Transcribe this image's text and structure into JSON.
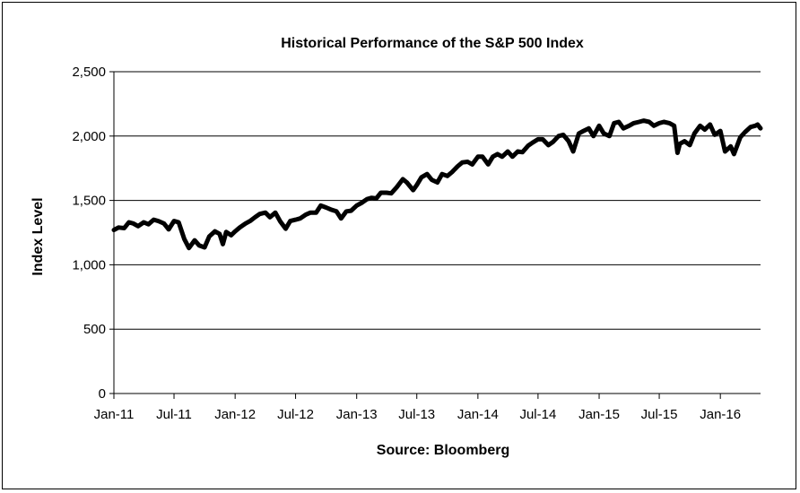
{
  "chart_data": {
    "type": "line",
    "title": "Historical Performance of the S&P 500 Index",
    "xlabel": "Source: Bloomberg",
    "ylabel": "Index Level",
    "ylim": [
      0,
      2500
    ],
    "yticks": [
      0,
      500,
      1000,
      1500,
      2000,
      2500
    ],
    "ytick_labels": [
      "0",
      "500",
      "1,000",
      "1,500",
      "2,000",
      "2,500"
    ],
    "xlim": [
      "2011-01-01",
      "2016-05-01"
    ],
    "xtick_labels": [
      "Jan-11",
      "Jul-11",
      "Jan-12",
      "Jul-12",
      "Jan-13",
      "Jul-13",
      "Jan-14",
      "Jul-14",
      "Jan-15",
      "Jul-15",
      "Jan-16"
    ],
    "grid": "horizontal",
    "series": [
      {
        "color": "#000000",
        "points": [
          [
            "2011-01-01",
            1270
          ],
          [
            "2011-01-15",
            1290
          ],
          [
            "2011-02-01",
            1285
          ],
          [
            "2011-02-15",
            1330
          ],
          [
            "2011-03-01",
            1320
          ],
          [
            "2011-03-15",
            1300
          ],
          [
            "2011-04-01",
            1330
          ],
          [
            "2011-04-15",
            1315
          ],
          [
            "2011-05-01",
            1350
          ],
          [
            "2011-05-15",
            1340
          ],
          [
            "2011-06-01",
            1320
          ],
          [
            "2011-06-15",
            1275
          ],
          [
            "2011-07-01",
            1340
          ],
          [
            "2011-07-15",
            1330
          ],
          [
            "2011-08-01",
            1200
          ],
          [
            "2011-08-15",
            1130
          ],
          [
            "2011-09-01",
            1190
          ],
          [
            "2011-09-15",
            1150
          ],
          [
            "2011-10-01",
            1135
          ],
          [
            "2011-10-15",
            1220
          ],
          [
            "2011-11-01",
            1260
          ],
          [
            "2011-11-15",
            1240
          ],
          [
            "2011-11-25",
            1160
          ],
          [
            "2011-12-05",
            1255
          ],
          [
            "2011-12-20",
            1230
          ],
          [
            "2012-01-01",
            1260
          ],
          [
            "2012-01-15",
            1290
          ],
          [
            "2012-02-01",
            1320
          ],
          [
            "2012-02-15",
            1340
          ],
          [
            "2012-03-01",
            1370
          ],
          [
            "2012-03-15",
            1395
          ],
          [
            "2012-04-01",
            1405
          ],
          [
            "2012-04-15",
            1370
          ],
          [
            "2012-05-01",
            1405
          ],
          [
            "2012-05-15",
            1340
          ],
          [
            "2012-06-01",
            1280
          ],
          [
            "2012-06-15",
            1340
          ],
          [
            "2012-07-01",
            1350
          ],
          [
            "2012-07-15",
            1360
          ],
          [
            "2012-08-01",
            1390
          ],
          [
            "2012-08-15",
            1405
          ],
          [
            "2012-09-01",
            1405
          ],
          [
            "2012-09-15",
            1460
          ],
          [
            "2012-10-01",
            1445
          ],
          [
            "2012-10-15",
            1430
          ],
          [
            "2012-11-01",
            1415
          ],
          [
            "2012-11-15",
            1360
          ],
          [
            "2012-12-01",
            1415
          ],
          [
            "2012-12-15",
            1420
          ],
          [
            "2013-01-01",
            1460
          ],
          [
            "2013-01-15",
            1480
          ],
          [
            "2013-02-01",
            1510
          ],
          [
            "2013-02-15",
            1520
          ],
          [
            "2013-03-01",
            1515
          ],
          [
            "2013-03-15",
            1560
          ],
          [
            "2013-04-01",
            1560
          ],
          [
            "2013-04-15",
            1555
          ],
          [
            "2013-05-01",
            1600
          ],
          [
            "2013-05-20",
            1665
          ],
          [
            "2013-06-01",
            1640
          ],
          [
            "2013-06-20",
            1580
          ],
          [
            "2013-07-01",
            1620
          ],
          [
            "2013-07-15",
            1680
          ],
          [
            "2013-08-01",
            1705
          ],
          [
            "2013-08-15",
            1660
          ],
          [
            "2013-09-01",
            1640
          ],
          [
            "2013-09-15",
            1705
          ],
          [
            "2013-10-01",
            1690
          ],
          [
            "2013-10-15",
            1720
          ],
          [
            "2013-11-01",
            1765
          ],
          [
            "2013-11-15",
            1795
          ],
          [
            "2013-12-01",
            1800
          ],
          [
            "2013-12-15",
            1780
          ],
          [
            "2014-01-01",
            1840
          ],
          [
            "2014-01-15",
            1840
          ],
          [
            "2014-02-01",
            1780
          ],
          [
            "2014-02-15",
            1840
          ],
          [
            "2014-03-01",
            1860
          ],
          [
            "2014-03-15",
            1840
          ],
          [
            "2014-04-01",
            1880
          ],
          [
            "2014-04-15",
            1840
          ],
          [
            "2014-05-01",
            1880
          ],
          [
            "2014-05-15",
            1875
          ],
          [
            "2014-06-01",
            1925
          ],
          [
            "2014-06-15",
            1950
          ],
          [
            "2014-07-01",
            1975
          ],
          [
            "2014-07-15",
            1975
          ],
          [
            "2014-08-01",
            1930
          ],
          [
            "2014-08-15",
            1955
          ],
          [
            "2014-09-01",
            2000
          ],
          [
            "2014-09-15",
            2010
          ],
          [
            "2014-10-01",
            1960
          ],
          [
            "2014-10-15",
            1880
          ],
          [
            "2014-11-01",
            2020
          ],
          [
            "2014-11-15",
            2040
          ],
          [
            "2014-12-01",
            2060
          ],
          [
            "2014-12-15",
            2000
          ],
          [
            "2015-01-01",
            2080
          ],
          [
            "2015-01-15",
            2020
          ],
          [
            "2015-02-01",
            2000
          ],
          [
            "2015-02-15",
            2100
          ],
          [
            "2015-03-01",
            2110
          ],
          [
            "2015-03-15",
            2060
          ],
          [
            "2015-04-01",
            2080
          ],
          [
            "2015-04-15",
            2100
          ],
          [
            "2015-05-01",
            2110
          ],
          [
            "2015-05-15",
            2120
          ],
          [
            "2015-06-01",
            2110
          ],
          [
            "2015-06-15",
            2080
          ],
          [
            "2015-07-01",
            2100
          ],
          [
            "2015-07-15",
            2110
          ],
          [
            "2015-08-01",
            2100
          ],
          [
            "2015-08-15",
            2080
          ],
          [
            "2015-08-25",
            1870
          ],
          [
            "2015-09-01",
            1940
          ],
          [
            "2015-09-15",
            1960
          ],
          [
            "2015-10-01",
            1930
          ],
          [
            "2015-10-15",
            2020
          ],
          [
            "2015-11-01",
            2080
          ],
          [
            "2015-11-15",
            2050
          ],
          [
            "2015-12-01",
            2090
          ],
          [
            "2015-12-15",
            2010
          ],
          [
            "2016-01-01",
            2040
          ],
          [
            "2016-01-15",
            1880
          ],
          [
            "2016-02-01",
            1920
          ],
          [
            "2016-02-11",
            1860
          ],
          [
            "2016-03-01",
            1990
          ],
          [
            "2016-03-15",
            2030
          ],
          [
            "2016-04-01",
            2070
          ],
          [
            "2016-04-15",
            2080
          ],
          [
            "2016-04-22",
            2090
          ],
          [
            "2016-05-01",
            2060
          ]
        ]
      }
    ]
  }
}
